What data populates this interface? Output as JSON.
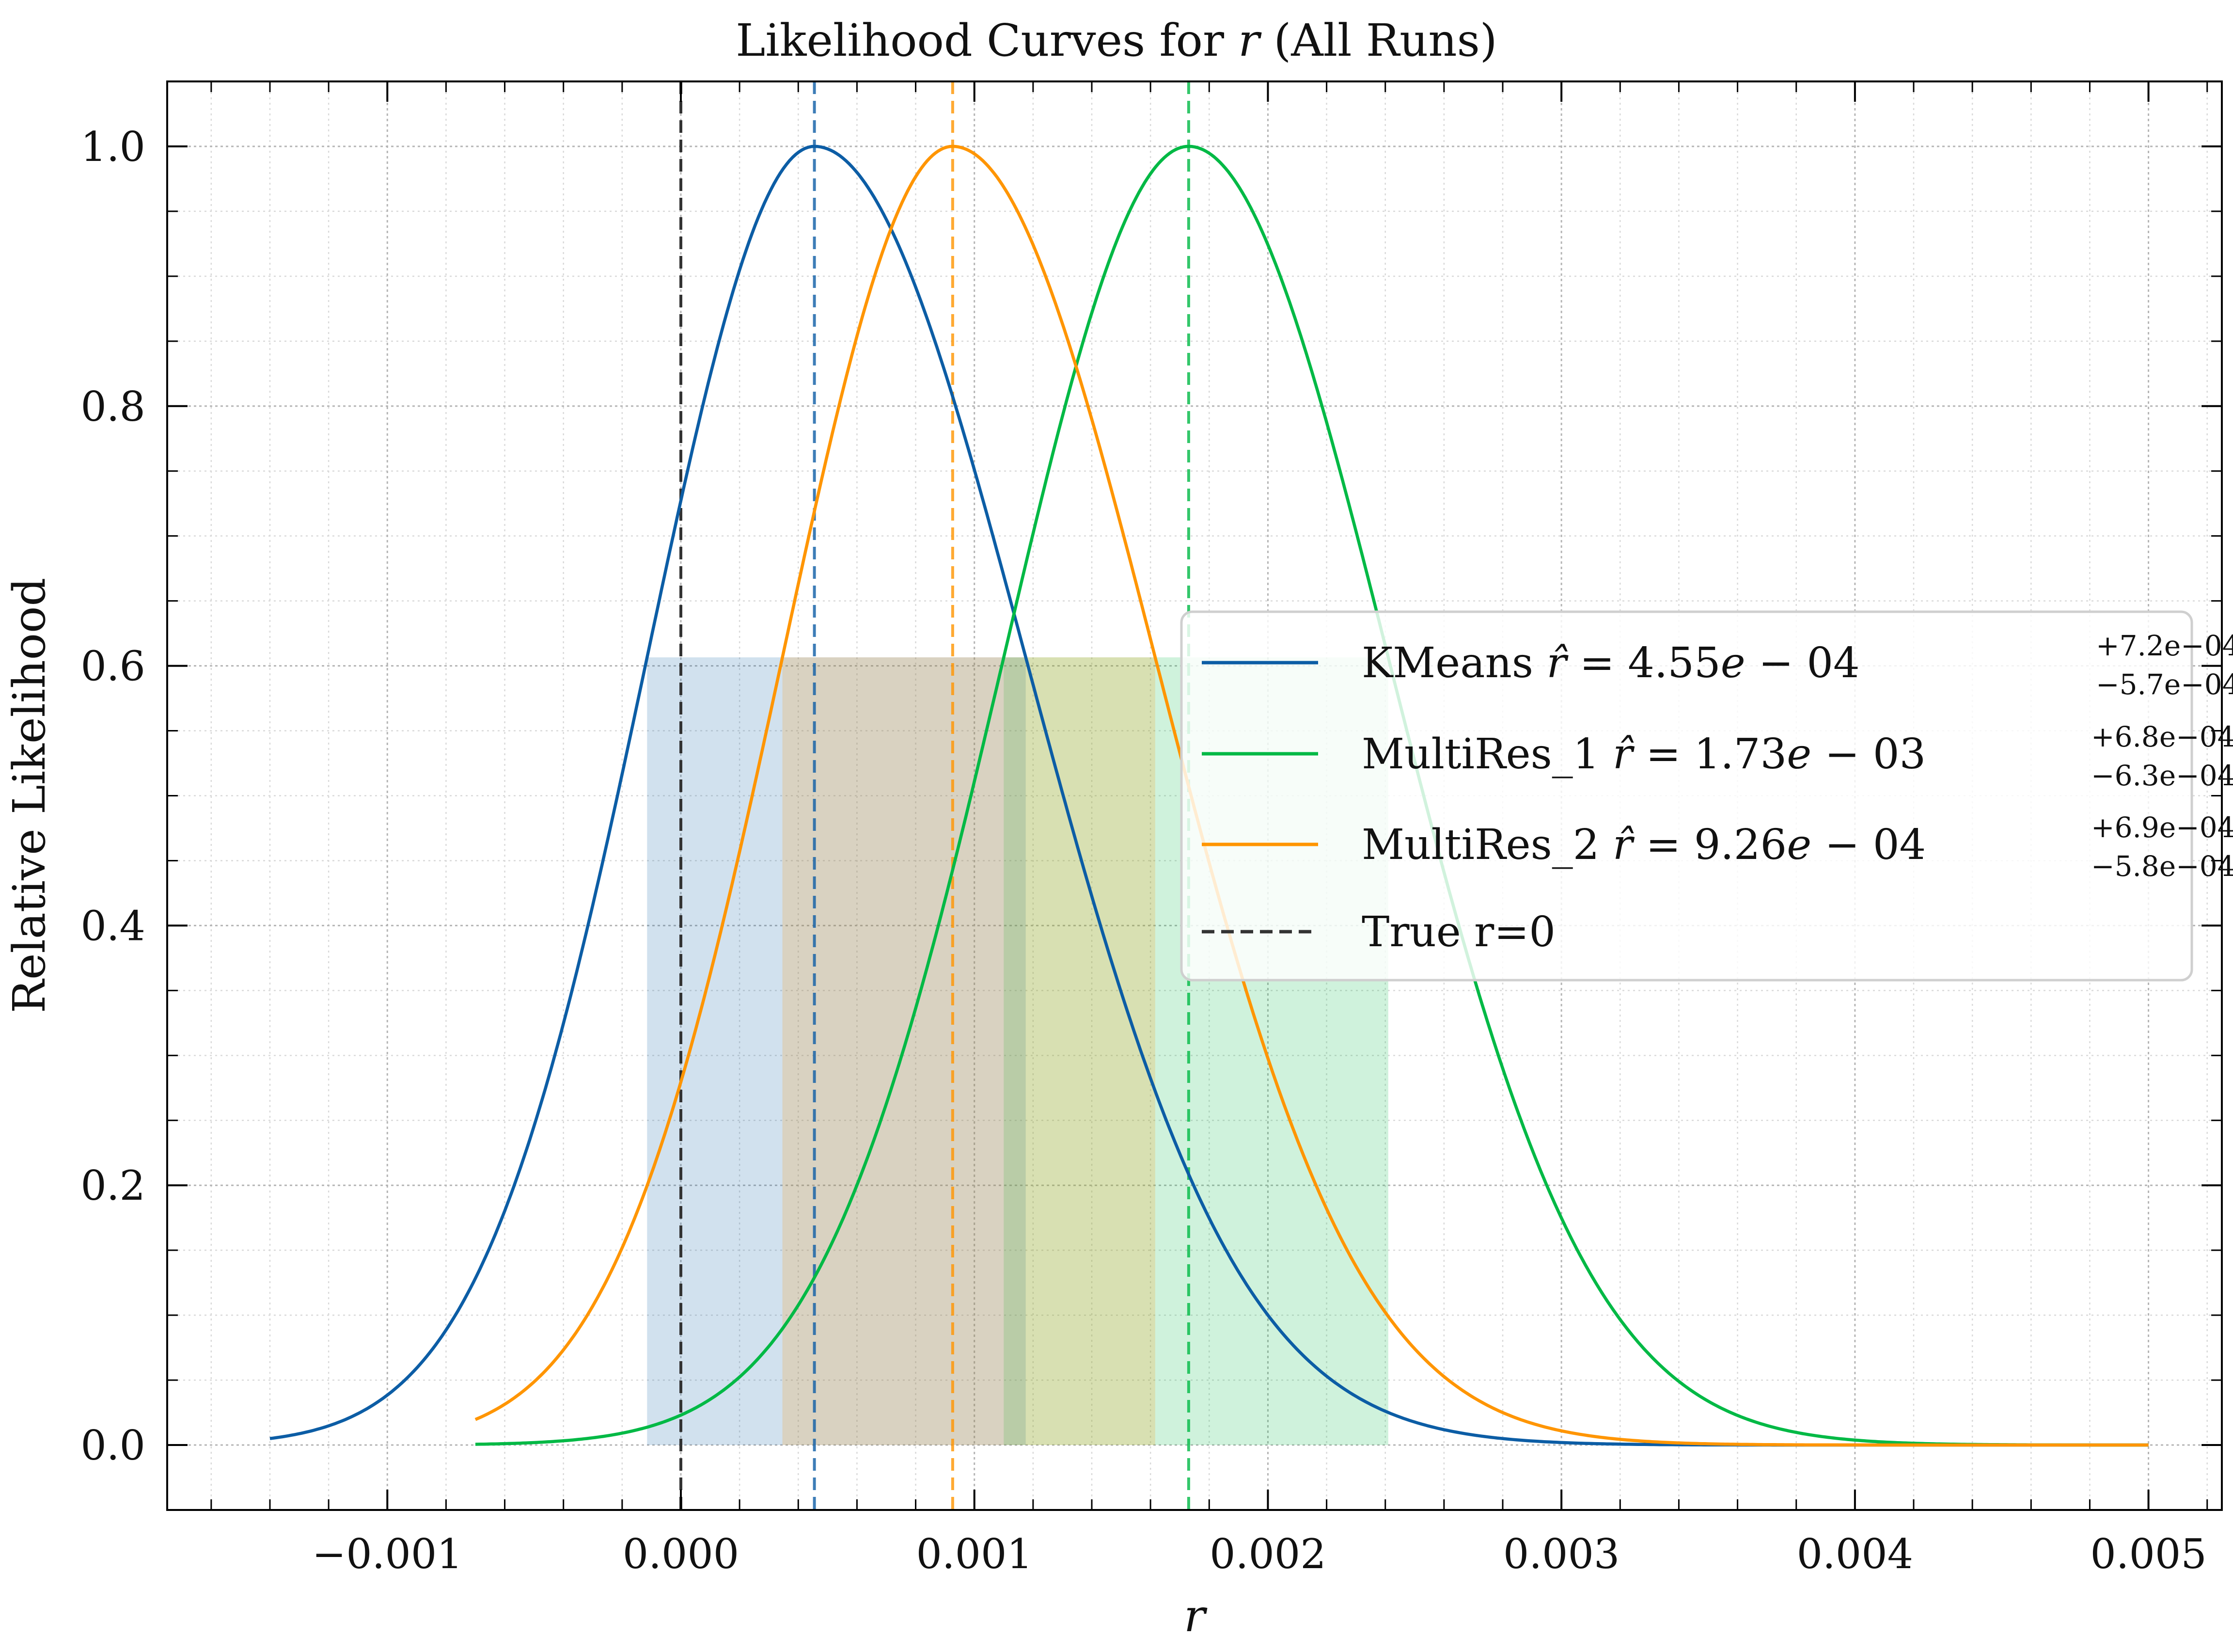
{
  "chart_data": {
    "type": "line",
    "title": "Likelihood Curves for r (All Runs)",
    "title_parts": {
      "prefix": "Likelihood Curves for ",
      "var": "r",
      "suffix": " (All Runs)"
    },
    "xlabel": "r",
    "ylabel": "Relative Likelihood",
    "xlim": [
      -0.00175,
      0.00525
    ],
    "ylim": [
      -0.05,
      1.05
    ],
    "xticks": [
      -0.001,
      0.0,
      0.001,
      0.002,
      0.003,
      0.004,
      0.005
    ],
    "xtick_labels": [
      "−0.001",
      "0.000",
      "0.001",
      "0.002",
      "0.003",
      "0.004",
      "0.005"
    ],
    "yticks": [
      0.0,
      0.2,
      0.4,
      0.6,
      0.8,
      1.0
    ],
    "ytick_labels": [
      "0.0",
      "0.2",
      "0.4",
      "0.6",
      "0.8",
      "1.0"
    ],
    "grid": true,
    "legend_position": "center-right",
    "series": [
      {
        "name": "KMeans",
        "color": "#0C5DA5",
        "x_range": [
          -0.0014,
          0.005
        ],
        "peak": 0.000455,
        "sigma_minus": 0.00057,
        "sigma_plus": 0.00072,
        "band": [
          -0.000115,
          0.001175
        ],
        "label_parts": {
          "prefix": "KMeans ",
          "var": "r̂",
          "eq": " = 4.55",
          "e": "e",
          "exp": " − 04",
          "sup": "+7.2e−04",
          "sub": "−5.7e−04"
        }
      },
      {
        "name": "MultiRes_1",
        "color": "#00B945",
        "x_range": [
          -0.0007,
          0.005
        ],
        "peak": 0.00173,
        "sigma_minus": 0.00063,
        "sigma_plus": 0.00068,
        "band": [
          0.0011,
          0.00241
        ],
        "label_parts": {
          "prefix": "MultiRes_1 ",
          "var": "r̂",
          "eq": " = 1.73",
          "e": "e",
          "exp": " − 03",
          "sup": "+6.8e−04",
          "sub": "−6.3e−04"
        }
      },
      {
        "name": "MultiRes_2",
        "color": "#FF9500",
        "x_range": [
          -0.0007,
          0.005
        ],
        "peak": 0.000926,
        "sigma_minus": 0.00058,
        "sigma_plus": 0.00069,
        "band": [
          0.000346,
          0.001616
        ],
        "label_parts": {
          "prefix": "MultiRes_2 ",
          "var": "r̂",
          "eq": " = 9.26",
          "e": "e",
          "exp": " − 04",
          "sup": "+6.9e−04",
          "sub": "−5.8e−04"
        }
      }
    ],
    "reference_line": {
      "name": "True r=0",
      "x": 0.0,
      "color": "#333333"
    }
  }
}
